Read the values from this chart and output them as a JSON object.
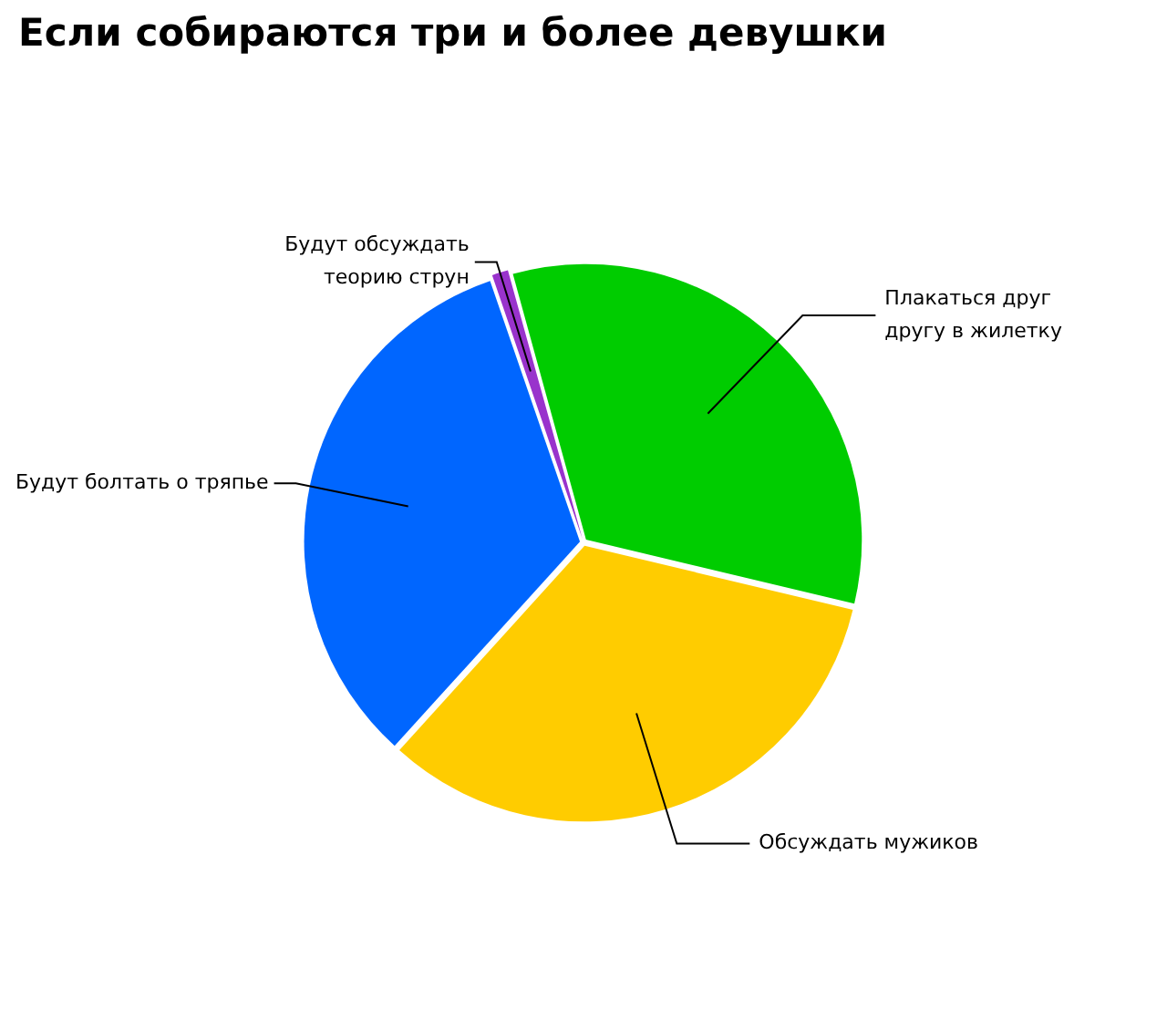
{
  "chart_data": {
    "type": "pie",
    "title": "Если собираются три и более девушки",
    "categories": [
      "Будут обсуждать\nтеорию струн",
      "Плакаться друг\nдругу в жилетку",
      "Обсуждать мужиков",
      "Будут болтать о тряпье"
    ],
    "values": [
      1,
      33,
      33,
      33
    ],
    "colors": [
      "#9933cc",
      "#00cc00",
      "#ffcc00",
      "#0066ff"
    ],
    "legend": false
  }
}
